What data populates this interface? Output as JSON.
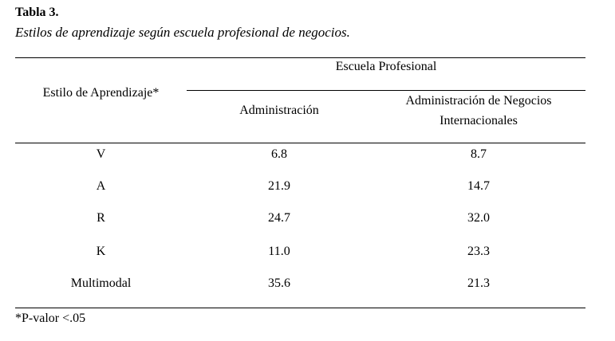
{
  "table": {
    "number": "Tabla 3.",
    "caption": "Estilos de aprendizaje según escuela profesional de negocios.",
    "header": {
      "row_header": "Estilo de Aprendizaje*",
      "group_header": "Escuela Profesional",
      "columns": [
        "Administración",
        "Administración de Negocios Internacionales"
      ],
      "column_2_lines": [
        "Administración de Negocios",
        "Internacionales"
      ]
    },
    "rows": [
      {
        "style": "V",
        "administracion": "6.8",
        "negocios_internacionales": "8.7"
      },
      {
        "style": "A",
        "administracion": "21.9",
        "negocios_internacionales": "14.7"
      },
      {
        "style": "R",
        "administracion": "24.7",
        "negocios_internacionales": "32.0"
      },
      {
        "style": "K",
        "administracion": "11.0",
        "negocios_internacionales": "23.3"
      },
      {
        "style": "Multimodal",
        "administracion": "35.6",
        "negocios_internacionales": "21.3"
      }
    ],
    "footnote": "*P-valor <.05"
  }
}
